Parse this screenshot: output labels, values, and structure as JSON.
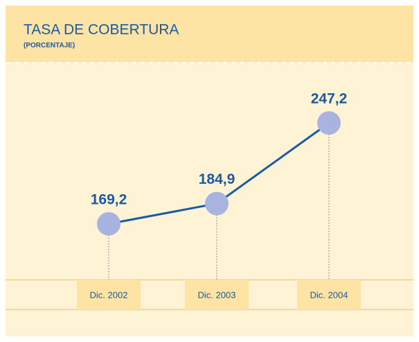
{
  "chart_data": {
    "type": "line",
    "title": "TASA DE COBERTURA",
    "subtitle": "(PORCENTAJE)",
    "categories": [
      "Dic. 2002",
      "Dic. 2003",
      "Dic. 2004"
    ],
    "values": [
      169.2,
      184.9,
      247.2
    ],
    "value_labels": [
      "169,2",
      "184,9",
      "247,2"
    ],
    "color": "#1a5aa0",
    "marker_color": "#a9b3e0"
  }
}
